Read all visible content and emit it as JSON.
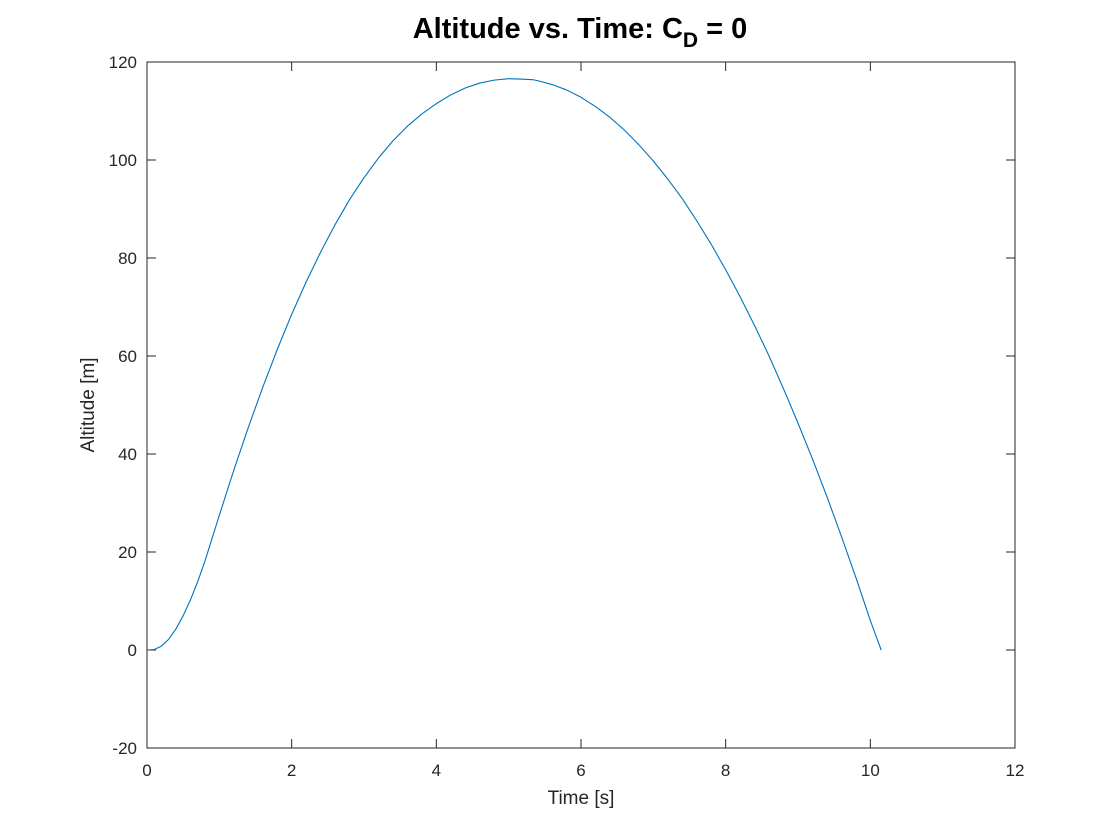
{
  "chart_data": {
    "type": "line",
    "title": {
      "main": "Altitude vs. Time: C",
      "subscript": "D",
      "suffix": " = 0"
    },
    "xlabel": "Time [s]",
    "ylabel": "Altitude [m]",
    "xlim": [
      0,
      12
    ],
    "ylim": [
      -20,
      120
    ],
    "xticks": [
      0,
      2,
      4,
      6,
      8,
      10,
      12
    ],
    "yticks": [
      -20,
      0,
      20,
      40,
      60,
      80,
      100,
      120
    ],
    "xtick_labels": [
      "0",
      "2",
      "4",
      "6",
      "8",
      "10",
      "12"
    ],
    "ytick_labels": [
      "-20",
      "0",
      "20",
      "40",
      "60",
      "80",
      "100",
      "120"
    ],
    "grid": false,
    "box": true,
    "series": [
      {
        "color": "#0072BD",
        "x": [
          0,
          0.1,
          0.2,
          0.3,
          0.4,
          0.5,
          0.6,
          0.7,
          0.8,
          0.9,
          1.0,
          1.2,
          1.4,
          1.6,
          1.8,
          2.0,
          2.2,
          2.4,
          2.6,
          2.8,
          3.0,
          3.2,
          3.4,
          3.6,
          3.8,
          4.0,
          4.2,
          4.4,
          4.6,
          4.8,
          5.0,
          5.2,
          5.33,
          5.4,
          5.6,
          5.8,
          6.0,
          6.2,
          6.4,
          6.6,
          6.8,
          7.0,
          7.2,
          7.4,
          7.6,
          7.8,
          8.0,
          8.2,
          8.4,
          8.6,
          8.8,
          9.0,
          9.2,
          9.4,
          9.6,
          9.8,
          10.0,
          10.15
        ],
        "y": [
          0,
          0.1,
          0.8,
          2.2,
          4.3,
          7.0,
          10.2,
          13.9,
          18.1,
          22.8,
          27.5,
          36.7,
          45.4,
          53.6,
          61.3,
          68.5,
          75.1,
          81.2,
          86.8,
          91.9,
          96.4,
          100.4,
          103.9,
          106.9,
          109.4,
          111.5,
          113.3,
          114.7,
          115.7,
          116.3,
          116.6,
          116.5,
          116.4,
          116.2,
          115.4,
          114.3,
          112.8,
          110.9,
          108.7,
          106.1,
          103.1,
          99.8,
          96.1,
          92.1,
          87.6,
          82.8,
          77.6,
          72.1,
          66.2,
          60.0,
          53.3,
          46.3,
          39.0,
          31.3,
          23.2,
          14.8,
          6.0,
          0
        ]
      }
    ]
  }
}
